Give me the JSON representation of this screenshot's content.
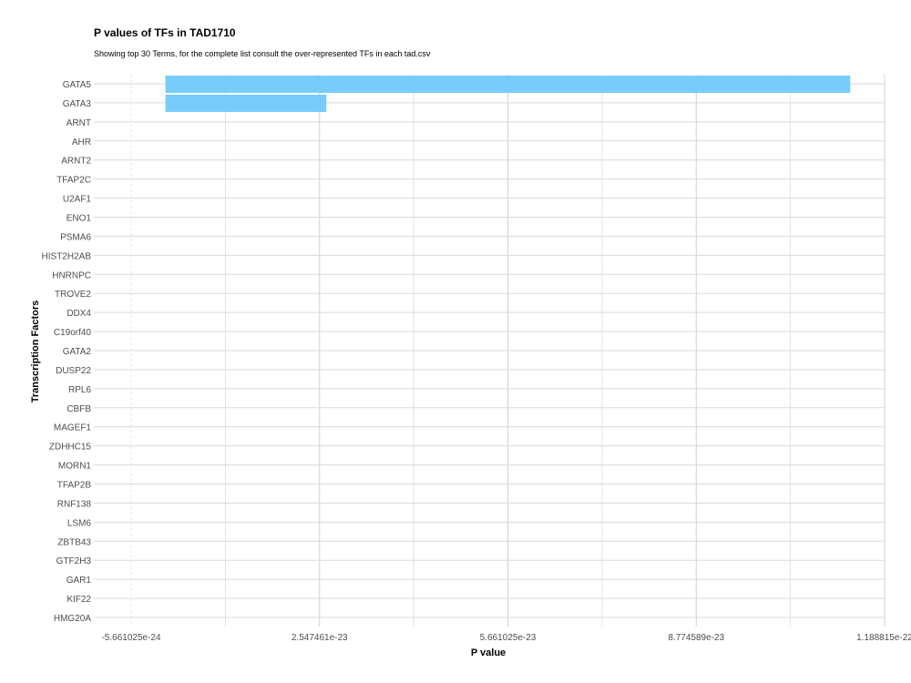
{
  "chart_data": {
    "type": "bar",
    "orientation": "horizontal",
    "title": "P values of TFs in TAD1710",
    "subtitle": "Showing top 30 Terms, for the complete list consult the over-represented TFs in each tad.csv",
    "xlabel": "P value",
    "ylabel": "Transcription Factors",
    "categories": [
      "GATA5",
      "GATA3",
      "ARNT",
      "AHR",
      "ARNT2",
      "TFAP2C",
      "U2AF1",
      "ENO1",
      "PSMA6",
      "HIST2H2AB",
      "HNRNPC",
      "TROVE2",
      "DDX4",
      "C19orf40",
      "GATA2",
      "DUSP22",
      "RPL6",
      "CBFB",
      "MAGEF1",
      "ZDHHC15",
      "MORN1",
      "TFAP2B",
      "RNF138",
      "LSM6",
      "ZBTB43",
      "GTF2H3",
      "GAR1",
      "KIF22",
      "HMG20A"
    ],
    "values": [
      1.132e-22,
      2.66e-23,
      0,
      0,
      0,
      0,
      0,
      0,
      0,
      0,
      0,
      0,
      0,
      0,
      0,
      0,
      0,
      0,
      0,
      0,
      0,
      0,
      0,
      0,
      0,
      0,
      0,
      0,
      0
    ],
    "xlim": [
      -5.661025e-24,
      1.188815e-22
    ],
    "xticks": [
      -5.661025e-24,
      2.547461e-23,
      5.661025e-23,
      8.774589e-23,
      1.188815e-22
    ],
    "xtick_labels": [
      "-5.661025e-24",
      "2.547461e-23",
      "5.661025e-23",
      "8.774589e-23",
      "1.188815e-22"
    ],
    "bar_color": "#77ccfc",
    "grid": true,
    "legend": "none"
  }
}
